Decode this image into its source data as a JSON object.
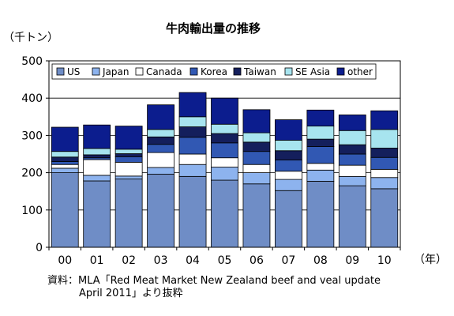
{
  "source": {
    "line1": "資料：MLA「Red Meat Market New Zealand beef and veal update",
    "line2": "April 2011」より抜粋"
  },
  "chart_data": {
    "type": "bar",
    "stacked": true,
    "title": "牛肉輸出量の推移",
    "ylabel": "（千トン）",
    "xlabel": "（年）",
    "categories": [
      "00",
      "01",
      "02",
      "03",
      "04",
      "05",
      "06",
      "07",
      "08",
      "09",
      "10"
    ],
    "ylim": [
      0,
      500
    ],
    "yticks": [
      "0",
      "100",
      "200",
      "300",
      "400",
      "500"
    ],
    "grid": true,
    "legend": "top-inside",
    "series": [
      {
        "name": "US",
        "color": "#6f8dc6",
        "values": [
          200,
          178,
          183,
          196,
          190,
          180,
          170,
          152,
          177,
          165,
          157
        ]
      },
      {
        "name": "Japan",
        "color": "#8db3ee",
        "values": [
          12,
          15,
          8,
          18,
          32,
          35,
          30,
          30,
          30,
          25,
          30
        ]
      },
      {
        "name": "Canada",
        "color": "#ffffff",
        "values": [
          10,
          42,
          37,
          40,
          28,
          25,
          22,
          22,
          18,
          30,
          22
        ]
      },
      {
        "name": "Korea",
        "color": "#3158b3",
        "values": [
          8,
          5,
          15,
          22,
          45,
          40,
          35,
          30,
          45,
          30,
          32
        ]
      },
      {
        "name": "Taiwan",
        "color": "#141f5c",
        "values": [
          12,
          8,
          8,
          20,
          28,
          25,
          25,
          25,
          20,
          25,
          25
        ]
      },
      {
        "name": "SE Asia",
        "color": "#a7e4ef",
        "values": [
          15,
          17,
          12,
          20,
          27,
          25,
          25,
          28,
          35,
          38,
          50
        ]
      },
      {
        "name": "other",
        "color": "#0c1d8e",
        "values": [
          65,
          63,
          62,
          66,
          65,
          70,
          62,
          55,
          43,
          42,
          50
        ]
      }
    ]
  }
}
